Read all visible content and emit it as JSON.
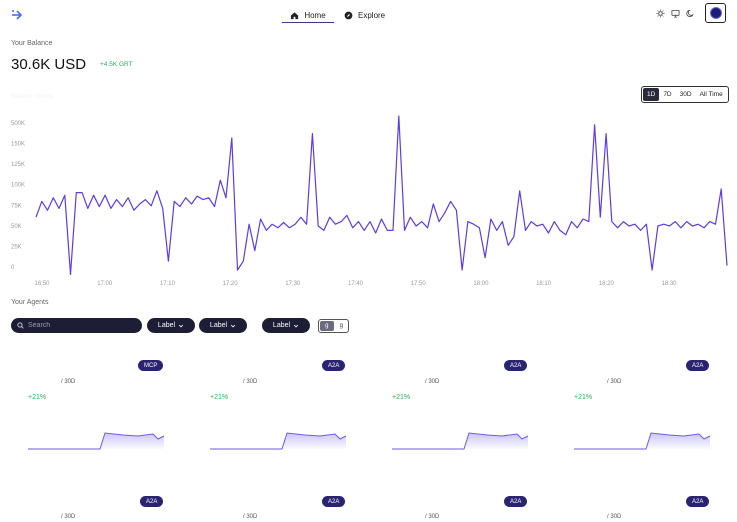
{
  "nav": {
    "home_label": "Home",
    "explore_label": "Explore"
  },
  "balance": {
    "label": "Your Balance",
    "value": "30.6K USD",
    "delta": "+4.5K GRT",
    "chart_label": "Balance History"
  },
  "range": {
    "options": [
      "1D",
      "7D",
      "30D",
      "All Time"
    ],
    "selected": "1D"
  },
  "chart_data": {
    "type": "line",
    "y_ticks": [
      "500K",
      "150K",
      "125K",
      "100K",
      "75K",
      "50K",
      "25K",
      "0"
    ],
    "x_ticks": [
      "16:50",
      "17:00",
      "17:10",
      "17:20",
      "17:30",
      "17:40",
      "17:50",
      "18:00",
      "18:10",
      "18:20",
      "18:30"
    ],
    "color": "#5b3ce8",
    "values": [
      60,
      78,
      68,
      82,
      70,
      85,
      -5,
      88,
      88,
      70,
      85,
      72,
      85,
      70,
      80,
      72,
      82,
      68,
      75,
      80,
      73,
      90,
      70,
      10,
      78,
      72,
      82,
      75,
      84,
      80,
      82,
      72,
      102,
      82,
      150,
      0,
      10,
      52,
      22,
      58,
      45,
      52,
      48,
      54,
      48,
      52,
      60,
      52,
      155,
      50,
      45,
      60,
      52,
      55,
      62,
      48,
      55,
      45,
      55,
      42,
      58,
      45,
      45,
      175,
      45,
      60,
      50,
      55,
      48,
      75,
      55,
      65,
      78,
      68,
      0,
      55,
      52,
      48,
      14,
      58,
      45,
      55,
      28,
      38,
      90,
      45,
      55,
      50,
      52,
      42,
      55,
      45,
      40,
      55,
      48,
      58,
      55,
      165,
      60,
      155,
      55,
      48,
      55,
      50,
      52,
      45,
      52,
      0,
      50,
      52,
      50,
      55,
      48,
      55,
      50,
      52,
      48,
      55,
      52,
      92,
      5
    ],
    "ylim": [
      0,
      175
    ]
  },
  "agents": {
    "title": "Your Agents",
    "search_placeholder": "Search",
    "filter1": "Label",
    "filter2": "Label",
    "filter3": "Label",
    "view_options": [
      "g",
      "g"
    ],
    "cards_row1": [
      {
        "badge": "MCP",
        "period": "/ 30D",
        "growth": "+21%"
      },
      {
        "badge": "A2A",
        "period": "/ 30D",
        "growth": "+21%"
      },
      {
        "badge": "A2A",
        "period": "/ 30D",
        "growth": "+21%"
      },
      {
        "badge": "A2A",
        "period": "/ 30D",
        "growth": "+21%"
      }
    ],
    "cards_row2": [
      {
        "badge": "A2A",
        "period": "/ 30D"
      },
      {
        "badge": "A2A",
        "period": "/ 30D"
      },
      {
        "badge": "A2A",
        "period": "/ 30D"
      },
      {
        "badge": "A2A",
        "period": "/ 30D"
      }
    ]
  }
}
